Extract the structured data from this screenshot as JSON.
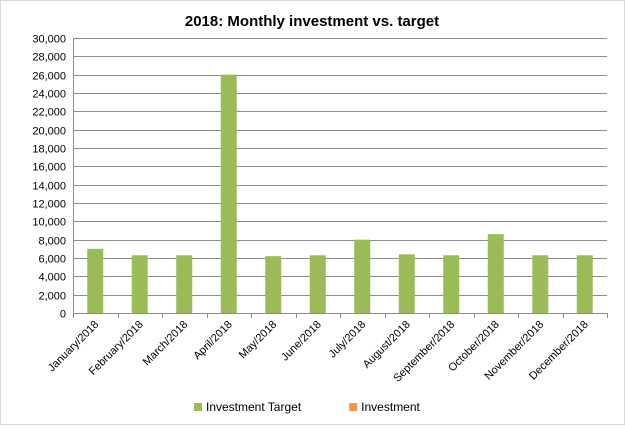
{
  "chart_data": {
    "type": "bar",
    "title": "2018: Monthly investment vs. target",
    "xlabel": "",
    "ylabel": "",
    "ylim": [
      0,
      30000
    ],
    "ytick_step": 2000,
    "ytick_labels": [
      "0",
      "2,000",
      "4,000",
      "6,000",
      "8,000",
      "10,000",
      "12,000",
      "14,000",
      "16,000",
      "18,000",
      "20,000",
      "22,000",
      "24,000",
      "26,000",
      "28,000",
      "30,000"
    ],
    "grid": true,
    "legend_position": "bottom",
    "categories": [
      "January/2018",
      "February/2018",
      "March/2018",
      "April/2018",
      "May/2018",
      "June/2018",
      "July/2018",
      "August/2018",
      "September/2018",
      "October/2018",
      "November/2018",
      "December/2018"
    ],
    "series": [
      {
        "name": "Investment Target",
        "color": "#9bbb59",
        "values": [
          7000,
          6300,
          6300,
          26000,
          6200,
          6300,
          8000,
          6400,
          6300,
          8600,
          6300,
          6300
        ]
      },
      {
        "name": "Investment",
        "color": "#f79646",
        "values": [
          0,
          0,
          0,
          0,
          0,
          0,
          0,
          0,
          0,
          0,
          0,
          0
        ]
      }
    ]
  }
}
